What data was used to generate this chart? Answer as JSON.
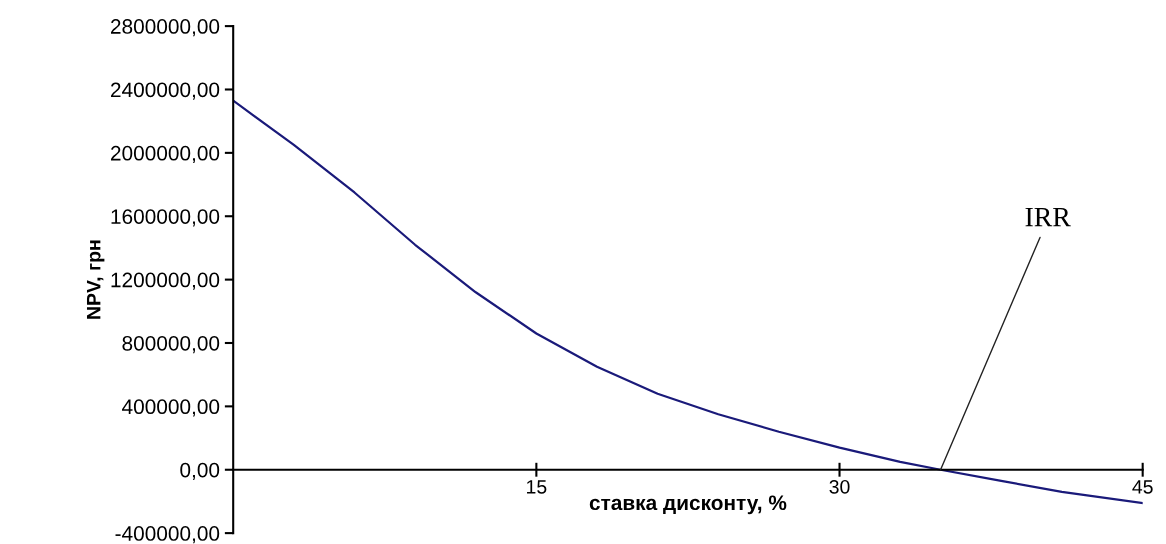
{
  "chart_data": {
    "type": "line",
    "xlabel": "ставка дисконту, %",
    "ylabel": "NPV, грн",
    "x": [
      0,
      3,
      6,
      9,
      12,
      15,
      18,
      21,
      24,
      27,
      30,
      33,
      35,
      38,
      41,
      45
    ],
    "series": [
      {
        "color": "#1a1a7a",
        "values": [
          2330000,
          2050000,
          1750000,
          1420000,
          1120000,
          860000,
          650000,
          480000,
          350000,
          240000,
          140000,
          50000,
          0,
          -70000,
          -140000,
          -210000
        ]
      }
    ],
    "xlim": [
      0,
      45
    ],
    "xticks": [
      15,
      30,
      45
    ],
    "ylim": [
      -400000,
      2800000
    ],
    "yticks": [
      {
        "value": -400000,
        "label": "-400000,00"
      },
      {
        "value": 0,
        "label": "0,00"
      },
      {
        "value": 400000,
        "label": "400000,00"
      },
      {
        "value": 800000,
        "label": "800000,00"
      },
      {
        "value": 1200000,
        "label": "1200000,00"
      },
      {
        "value": 1600000,
        "label": "1600000,00"
      },
      {
        "value": 2000000,
        "label": "2000000,00"
      },
      {
        "value": 2400000,
        "label": "2400000,00"
      },
      {
        "value": 2800000,
        "label": "2800000,00"
      }
    ],
    "annotations": [
      {
        "text": "IRR",
        "x": 35,
        "y": 0
      }
    ],
    "grid": false,
    "legend": false,
    "marker": "none",
    "line_style": "solid"
  }
}
